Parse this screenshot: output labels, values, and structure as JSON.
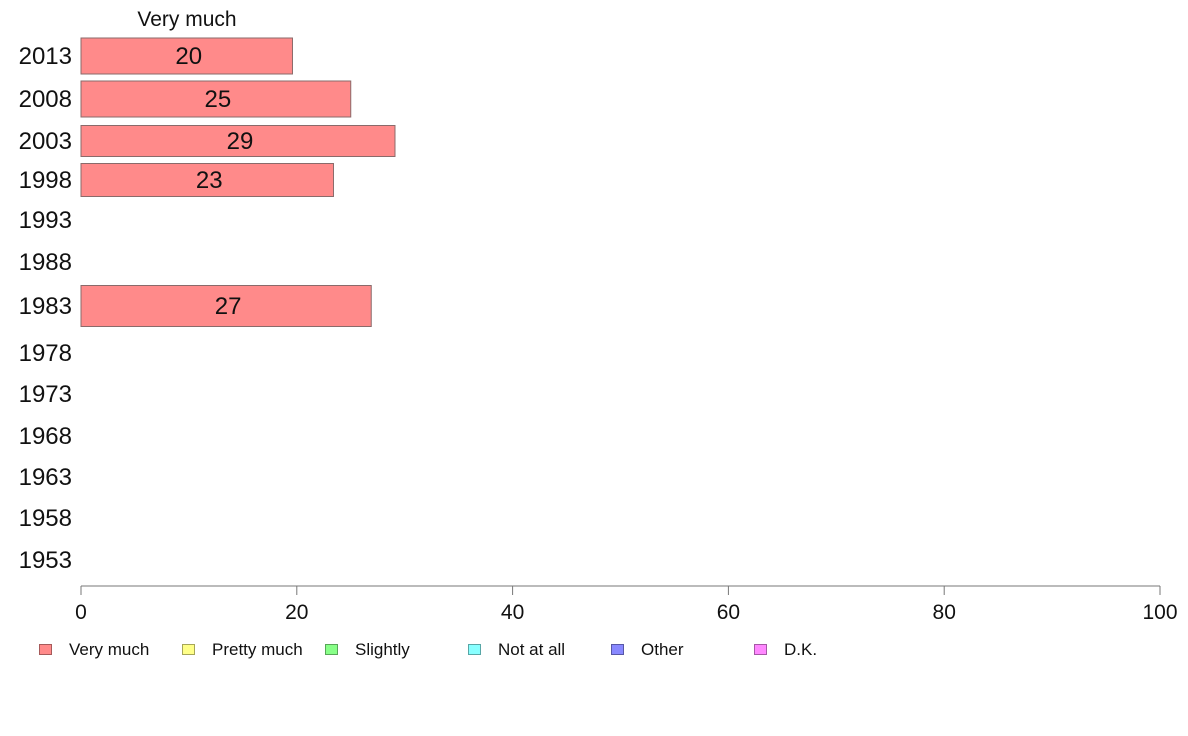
{
  "chart_data": {
    "type": "bar",
    "orientation": "horizontal",
    "stacked": true,
    "categories": [
      "2013",
      "2008",
      "2003",
      "1998",
      "1993",
      "1988",
      "1983",
      "1978",
      "1973",
      "1968",
      "1963",
      "1958",
      "1953"
    ],
    "series": [
      {
        "name": "Very much",
        "color": "#ff8a8a",
        "values": [
          19.6,
          25.0,
          29.1,
          23.4,
          null,
          null,
          26.9,
          null,
          null,
          null,
          null,
          null,
          null
        ],
        "labels": [
          "20",
          "25",
          "29",
          "23",
          "",
          "",
          "27",
          "",
          "",
          "",
          "",
          "",
          ""
        ]
      },
      {
        "name": "Pretty much",
        "color": "#ffff88",
        "values": [
          null,
          null,
          null,
          null,
          null,
          null,
          null,
          null,
          null,
          null,
          null,
          null,
          null
        ]
      },
      {
        "name": "Slightly",
        "color": "#88ff88",
        "values": [
          null,
          null,
          null,
          null,
          null,
          null,
          null,
          null,
          null,
          null,
          null,
          null,
          null
        ]
      },
      {
        "name": "Not at all",
        "color": "#88ffff",
        "values": [
          null,
          null,
          null,
          null,
          null,
          null,
          null,
          null,
          null,
          null,
          null,
          null,
          null
        ]
      },
      {
        "name": "Other",
        "color": "#8888ff",
        "values": [
          null,
          null,
          null,
          null,
          null,
          null,
          null,
          null,
          null,
          null,
          null,
          null,
          null
        ]
      },
      {
        "name": "D.K.",
        "color": "#ff88ff",
        "values": [
          null,
          null,
          null,
          null,
          null,
          null,
          null,
          null,
          null,
          null,
          null,
          null,
          null
        ]
      }
    ],
    "column_header": "Very much",
    "xlim": [
      0,
      100
    ],
    "xticks": [
      "0",
      "20",
      "40",
      "60",
      "80",
      "100"
    ],
    "grid": false,
    "legend_position": "bottom-left"
  }
}
